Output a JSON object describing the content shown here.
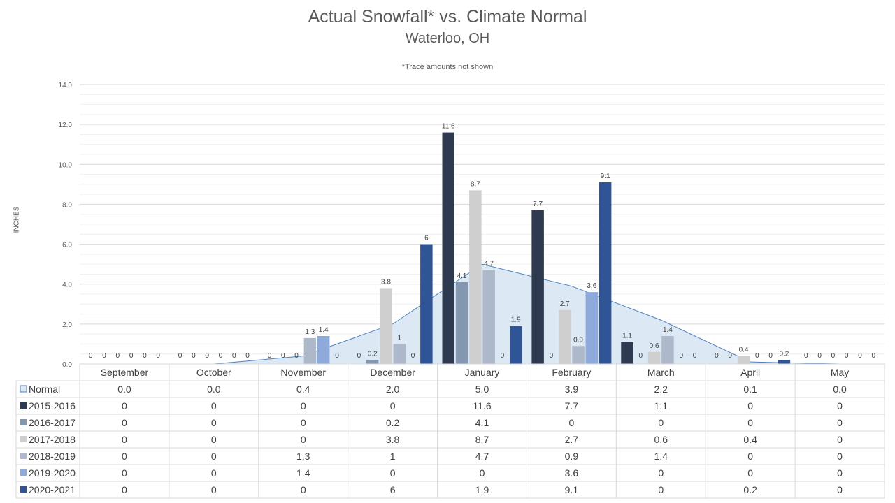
{
  "chart_data": {
    "type": "bar",
    "title": "Actual Snowfall* vs. Climate Normal",
    "subtitle": "Waterloo, OH",
    "note": "*Trace amounts not shown",
    "ylabel": "INCHES",
    "ylim": [
      0,
      14
    ],
    "yticks": [
      "0.0",
      "2.0",
      "4.0",
      "6.0",
      "8.0",
      "10.0",
      "12.0",
      "14.0"
    ],
    "grid": true,
    "categories": [
      "September",
      "October",
      "November",
      "December",
      "January",
      "February",
      "March",
      "April",
      "May"
    ],
    "normal": {
      "name": "Normal",
      "color": "#dce9f5",
      "line_color": "#4f81bd",
      "values": [
        0.0,
        0.0,
        0.4,
        2.0,
        5.0,
        3.9,
        2.2,
        0.1,
        0.0
      ],
      "labels": [
        "0.0",
        "0.0",
        "0.4",
        "2.0",
        "5.0",
        "3.9",
        "2.2",
        "0.1",
        "0.0"
      ]
    },
    "series": [
      {
        "name": "2015-2016",
        "color": "#2e3a4f",
        "values": [
          0,
          0,
          0,
          0,
          11.6,
          7.7,
          1.1,
          0,
          0
        ],
        "labels": [
          "0",
          "0",
          "0",
          "0",
          "11.6",
          "7.7",
          "1.1",
          "0",
          "0"
        ]
      },
      {
        "name": "2016-2017",
        "color": "#8497b0",
        "values": [
          0,
          0,
          0,
          0.2,
          4.1,
          0,
          0,
          0,
          0
        ],
        "labels": [
          "0",
          "0",
          "0",
          "0.2",
          "4.1",
          "0",
          "0",
          "0",
          "0"
        ]
      },
      {
        "name": "2017-2018",
        "color": "#d0cfcf",
        "values": [
          0,
          0,
          0,
          3.8,
          8.7,
          2.7,
          0.6,
          0.4,
          0
        ],
        "labels": [
          "0",
          "0",
          "0",
          "3.8",
          "8.7",
          "2.7",
          "0.6",
          "0.4",
          "0"
        ]
      },
      {
        "name": "2018-2019",
        "color": "#adb9ca",
        "values": [
          0,
          0,
          1.3,
          1,
          4.7,
          0.9,
          1.4,
          0,
          0
        ],
        "labels": [
          "0",
          "0",
          "1.3",
          "1",
          "4.7",
          "0.9",
          "1.4",
          "0",
          "0"
        ]
      },
      {
        "name": "2019-2020",
        "color": "#8eaadb",
        "values": [
          0,
          0,
          1.4,
          0,
          0,
          3.6,
          0,
          0,
          0
        ],
        "labels": [
          "0",
          "0",
          "1.4",
          "0",
          "0",
          "3.6",
          "0",
          "0",
          "0"
        ]
      },
      {
        "name": "2020-2021",
        "color": "#2f5597",
        "values": [
          0,
          0,
          0,
          6,
          1.9,
          9.1,
          0,
          0.2,
          0
        ],
        "labels": [
          "0",
          "0",
          "0",
          "6",
          "1.9",
          "9.1",
          "0",
          "0.2",
          "0"
        ]
      }
    ]
  }
}
